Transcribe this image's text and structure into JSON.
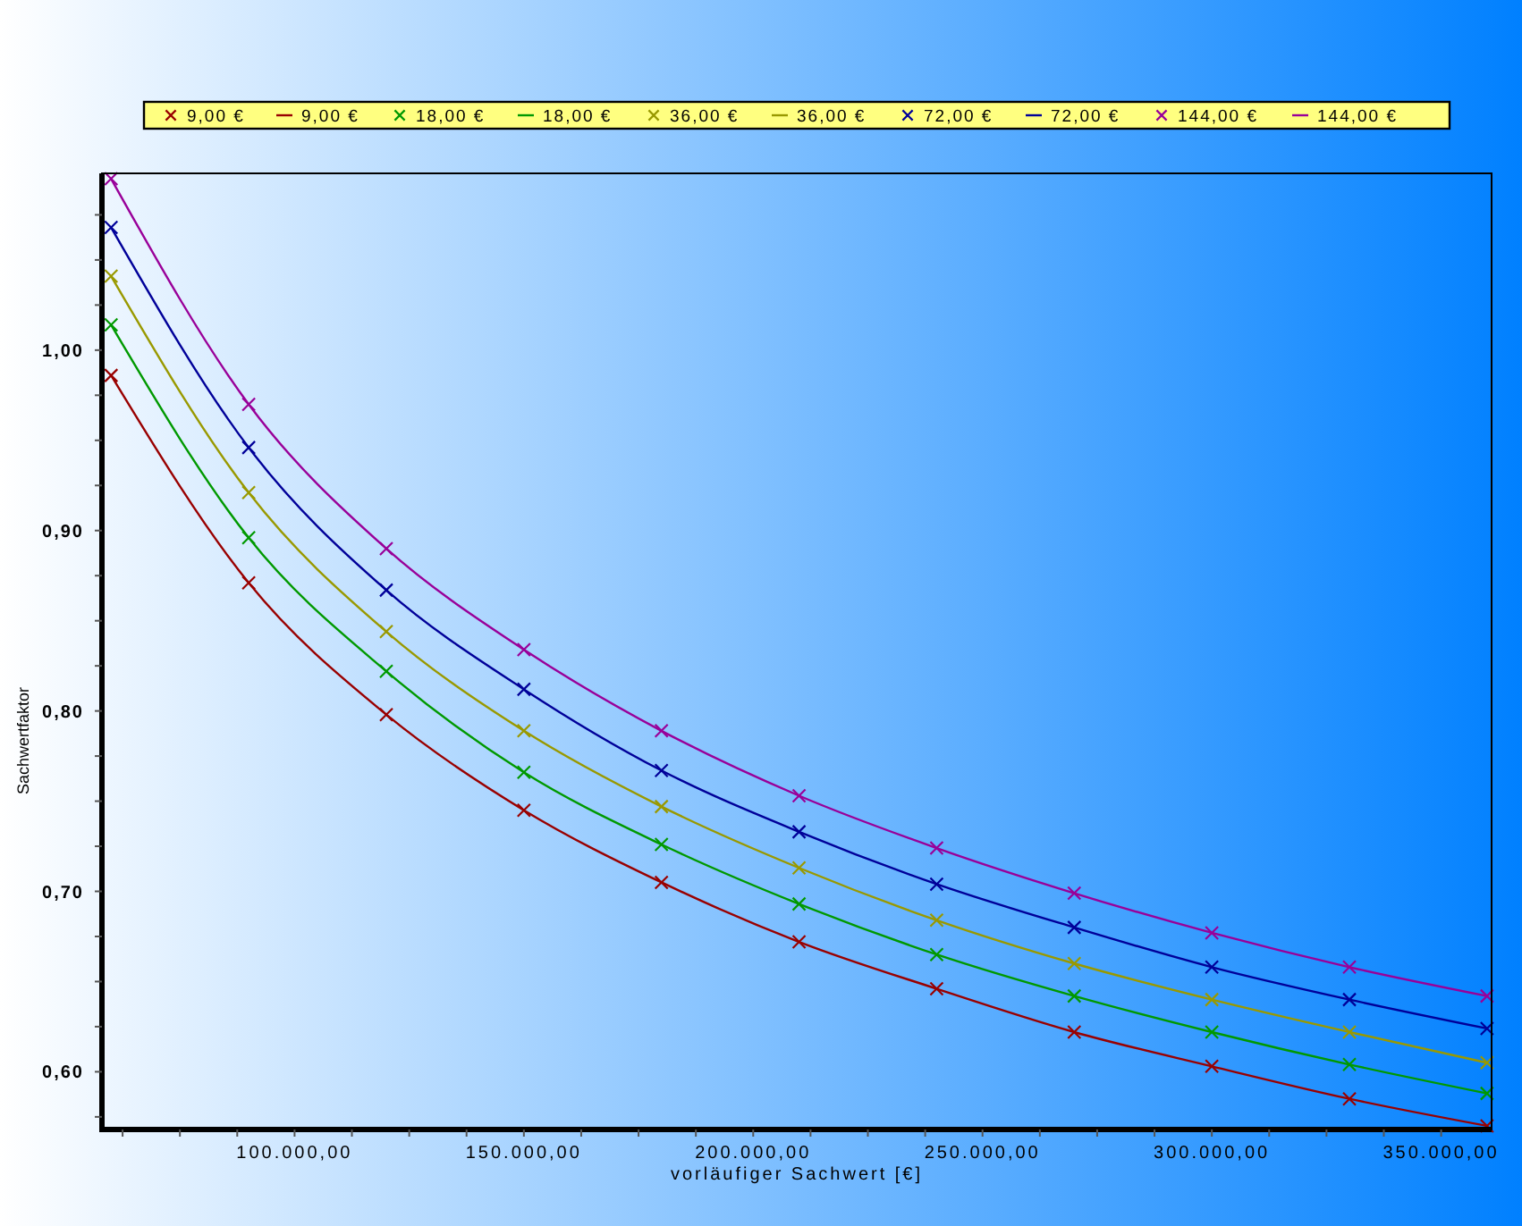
{
  "chart_data": {
    "type": "line",
    "xlabel": "vorläufiger Sachwert [€]",
    "ylabel": "Sachwertfaktor",
    "legend": "top",
    "grid": false,
    "x": [
      60000,
      90000,
      120000,
      150000,
      180000,
      210000,
      240000,
      270000,
      300000,
      330000,
      360000
    ],
    "xlim": [
      58000,
      361000
    ],
    "xticks": [
      {
        "value": 62500,
        "label": null
      },
      {
        "value": 75000,
        "label": null
      },
      {
        "value": 87500,
        "label": null
      },
      {
        "value": 100000,
        "label": "100.000,00"
      },
      {
        "value": 112500,
        "label": null
      },
      {
        "value": 125000,
        "label": null
      },
      {
        "value": 137500,
        "label": null
      },
      {
        "value": 150000,
        "label": "150.000,00"
      },
      {
        "value": 162500,
        "label": null
      },
      {
        "value": 175000,
        "label": null
      },
      {
        "value": 187500,
        "label": null
      },
      {
        "value": 200000,
        "label": "200.000,00"
      },
      {
        "value": 212500,
        "label": null
      },
      {
        "value": 225000,
        "label": null
      },
      {
        "value": 237500,
        "label": null
      },
      {
        "value": 250000,
        "label": "250.000,00"
      },
      {
        "value": 262500,
        "label": null
      },
      {
        "value": 275000,
        "label": null
      },
      {
        "value": 287500,
        "label": null
      },
      {
        "value": 300000,
        "label": "300.000,00"
      },
      {
        "value": 312500,
        "label": null
      },
      {
        "value": 325000,
        "label": null
      },
      {
        "value": 337500,
        "label": null
      },
      {
        "value": 350000,
        "label": "350.000,00"
      }
    ],
    "ylim": [
      0.568,
      1.098
    ],
    "yticks": [
      {
        "value": 0.575,
        "label": null
      },
      {
        "value": 0.6,
        "label": "0,60"
      },
      {
        "value": 0.625,
        "label": null
      },
      {
        "value": 0.65,
        "label": null
      },
      {
        "value": 0.675,
        "label": null
      },
      {
        "value": 0.7,
        "label": "0,70"
      },
      {
        "value": 0.725,
        "label": null
      },
      {
        "value": 0.75,
        "label": null
      },
      {
        "value": 0.775,
        "label": null
      },
      {
        "value": 0.8,
        "label": "0,80"
      },
      {
        "value": 0.825,
        "label": null
      },
      {
        "value": 0.85,
        "label": null
      },
      {
        "value": 0.875,
        "label": null
      },
      {
        "value": 0.9,
        "label": "0,90"
      },
      {
        "value": 0.925,
        "label": null
      },
      {
        "value": 0.95,
        "label": null
      },
      {
        "value": 0.975,
        "label": null
      },
      {
        "value": 1.0,
        "label": "1,00"
      },
      {
        "value": 1.025,
        "label": null
      },
      {
        "value": 1.05,
        "label": null
      },
      {
        "value": 1.075,
        "label": null
      }
    ],
    "series": [
      {
        "name": "9,00 €",
        "type": "scatter",
        "marker": "cross",
        "color": "#990000",
        "values": [
          0.986,
          0.871,
          0.798,
          0.745,
          0.705,
          0.672,
          0.646,
          0.622,
          0.603,
          0.585,
          0.57
        ]
      },
      {
        "name": "9,00 €",
        "color": "#990000",
        "values": [
          0.986,
          0.871,
          0.798,
          0.745,
          0.705,
          0.672,
          0.646,
          0.622,
          0.603,
          0.585,
          0.57
        ]
      },
      {
        "name": "18,00 €",
        "type": "scatter",
        "marker": "cross",
        "color": "#009900",
        "values": [
          1.014,
          0.896,
          0.822,
          0.766,
          0.726,
          0.693,
          0.665,
          0.642,
          0.622,
          0.604,
          0.588
        ]
      },
      {
        "name": "18,00 €",
        "color": "#009900",
        "values": [
          1.014,
          0.896,
          0.822,
          0.766,
          0.726,
          0.693,
          0.665,
          0.642,
          0.622,
          0.604,
          0.588
        ]
      },
      {
        "name": "36,00 €",
        "type": "scatter",
        "marker": "cross",
        "color": "#999900",
        "values": [
          1.041,
          0.921,
          0.844,
          0.789,
          0.747,
          0.713,
          0.684,
          0.66,
          0.64,
          0.622,
          0.605
        ]
      },
      {
        "name": "36,00 €",
        "color": "#999900",
        "values": [
          1.041,
          0.921,
          0.844,
          0.789,
          0.747,
          0.713,
          0.684,
          0.66,
          0.64,
          0.622,
          0.605
        ]
      },
      {
        "name": "72,00 €",
        "type": "scatter",
        "marker": "cross",
        "color": "#000099",
        "values": [
          1.068,
          0.946,
          0.867,
          0.812,
          0.767,
          0.733,
          0.704,
          0.68,
          0.658,
          0.64,
          0.624
        ]
      },
      {
        "name": "72,00 €",
        "color": "#000099",
        "values": [
          1.068,
          0.946,
          0.867,
          0.812,
          0.767,
          0.733,
          0.704,
          0.68,
          0.658,
          0.64,
          0.624
        ]
      },
      {
        "name": "144,00 €",
        "type": "scatter",
        "marker": "cross",
        "color": "#990099",
        "values": [
          1.095,
          0.97,
          0.89,
          0.834,
          0.789,
          0.753,
          0.724,
          0.699,
          0.677,
          0.658,
          0.642
        ]
      },
      {
        "name": "144,00 €",
        "color": "#990099",
        "values": [
          1.095,
          0.97,
          0.89,
          0.834,
          0.789,
          0.753,
          0.724,
          0.699,
          0.677,
          0.658,
          0.642
        ]
      }
    ]
  }
}
